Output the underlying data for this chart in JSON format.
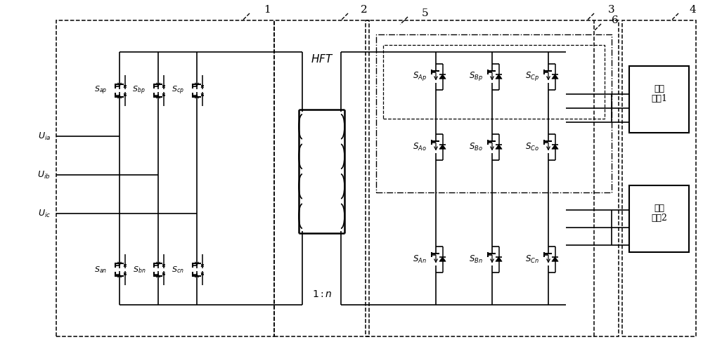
{
  "fig_w": 10.0,
  "fig_h": 5.14,
  "labels": {
    "Uia": "$U_{ia}$",
    "Uib": "$U_{ib}$",
    "Uic": "$U_{ic}$",
    "Sap": "$S_{ap}$",
    "Sbp": "$S_{bp}$",
    "Scp": "$S_{cp}$",
    "San": "$S_{an}$",
    "Sbn": "$S_{bn}$",
    "Scn": "$S_{cn}$",
    "SAp": "$S_{Ap}$",
    "SBp": "$S_{Bp}$",
    "SCp": "$S_{Cp}$",
    "SAo": "$S_{Ao}$",
    "SBo": "$S_{Bo}$",
    "SCo": "$S_{Co}$",
    "SAn": "$S_{An}$",
    "SBn": "$S_{Bn}$",
    "SCn": "$S_{Cn}$",
    "HFT": "$HFT$",
    "ratio": "$1{:}n$",
    "load1": "三相\n负载1",
    "load2": "三相\n负载2",
    "n1": "1",
    "n2": "2",
    "n3": "3",
    "n4": "4",
    "n5": "5",
    "n6": "6"
  }
}
